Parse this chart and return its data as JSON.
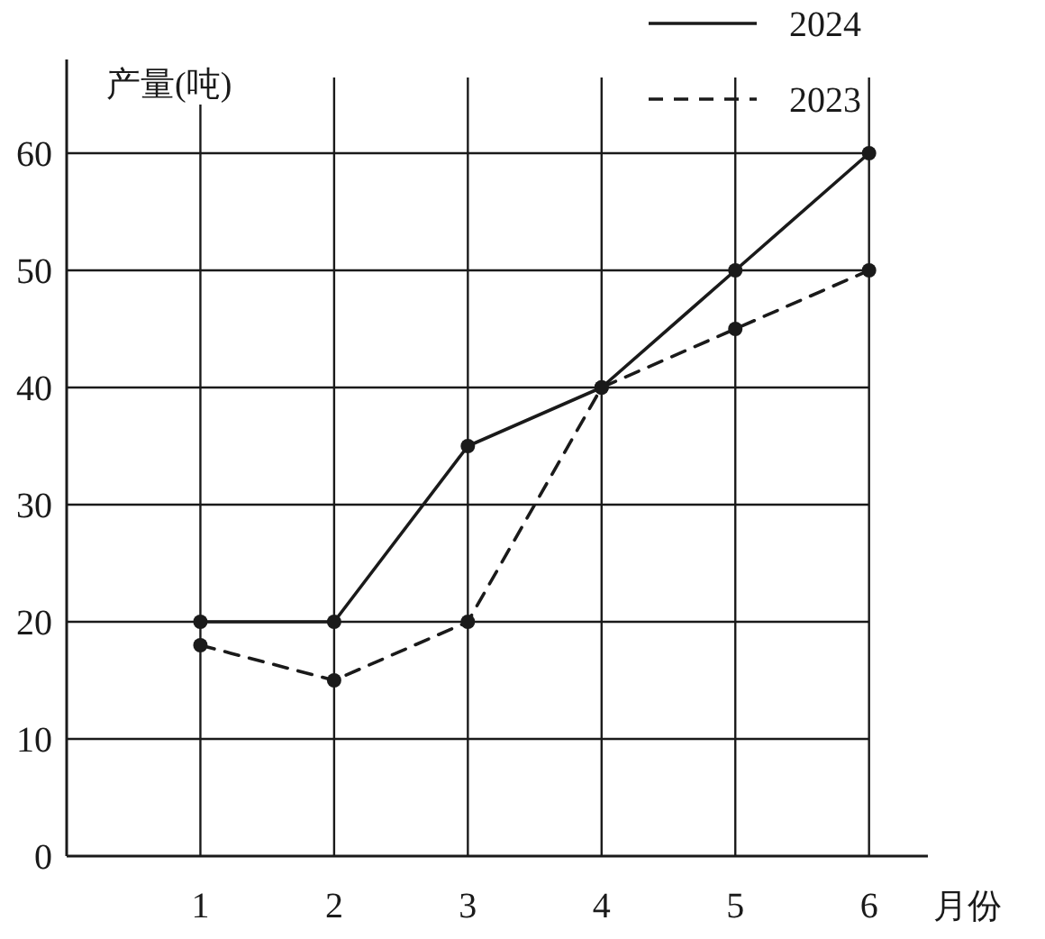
{
  "chart_data": {
    "type": "line",
    "xlabel": "月份",
    "ylabel": "产量(吨)",
    "x": [
      1,
      2,
      3,
      4,
      5,
      6
    ],
    "series": [
      {
        "name": "2024",
        "color": "#1a1a1a",
        "line_style": "solid",
        "values": [
          20,
          20,
          35,
          40,
          50,
          60
        ]
      },
      {
        "name": "2023",
        "color": "#1a1a1a",
        "line_style": "dashed",
        "values": [
          18,
          15,
          20,
          40,
          45,
          50
        ]
      }
    ],
    "xlim": [
      0,
      6.44
    ],
    "xticks": [
      1,
      2,
      3,
      4,
      5,
      6
    ],
    "ylim": [
      0,
      68
    ],
    "yticks": [
      0,
      10,
      20,
      30,
      40,
      50,
      60
    ],
    "grid": true,
    "legend": "top right",
    "marker": "circle"
  }
}
